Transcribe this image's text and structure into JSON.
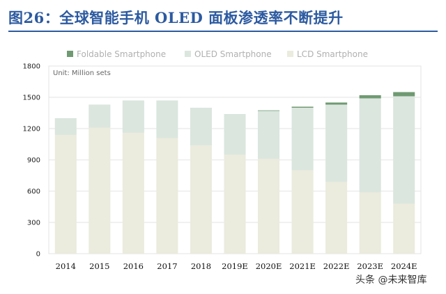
{
  "title": "图26：全球智能手机 OLED 面板渗透率不断提升",
  "watermark": "头条 @未来智库",
  "colors": {
    "title": "#2c5aa0",
    "foldable": "#6f9a72",
    "oled": "#dbe6de",
    "lcd": "#ebebde",
    "grid": "#e3e3e3",
    "legend_text": "#b0b0b0"
  },
  "chart_data": {
    "type": "bar",
    "stacked": true,
    "title": "",
    "unit_label": "Unit:   Million sets",
    "xlabel": "",
    "ylabel": "",
    "ylim": [
      0,
      1800
    ],
    "yticks": [
      0,
      300,
      600,
      900,
      1200,
      1500,
      1800
    ],
    "grid": true,
    "legend_position": "top",
    "categories": [
      "2014",
      "2015",
      "2016",
      "2017",
      "2018",
      "2019E",
      "2020E",
      "2021E",
      "2022E",
      "2023E",
      "2024E"
    ],
    "series": [
      {
        "name": "LCD Smartphone",
        "color": "#ebebde",
        "values": [
          1140,
          1210,
          1160,
          1110,
          1040,
          950,
          910,
          800,
          690,
          590,
          480
        ]
      },
      {
        "name": "OLED Smartphone",
        "color": "#dbe6de",
        "values": [
          160,
          220,
          310,
          360,
          360,
          390,
          460,
          600,
          740,
          900,
          1030
        ]
      },
      {
        "name": "Foldable Smartphone",
        "color": "#6f9a72",
        "values": [
          0,
          0,
          0,
          0,
          0,
          0,
          5,
          10,
          20,
          30,
          40
        ]
      }
    ],
    "legend_order": [
      "Foldable Smartphone",
      "OLED Smartphone",
      "LCD Smartphone"
    ]
  }
}
